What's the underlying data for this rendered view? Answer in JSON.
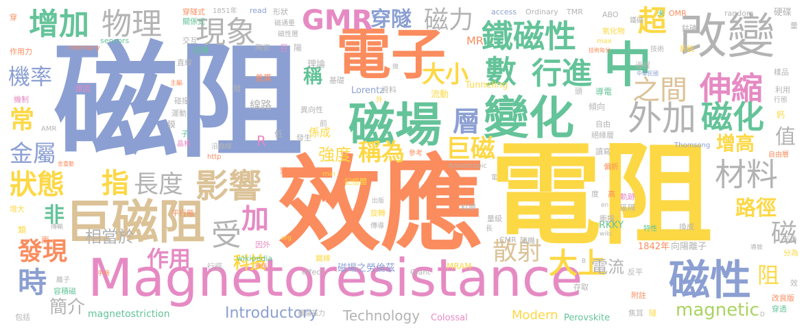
{
  "palette": {
    "blue": "#8b9fd2",
    "orange": "#fb8c5e",
    "yellow": "#fdd845",
    "pink": "#e68ac3",
    "green": "#64c399",
    "grey": "#b3b3b3",
    "tan": "#dbc297",
    "lime": "#a9d360"
  },
  "words": [
    {
      "text": "磁阻",
      "color": "blue"
    },
    {
      "text": "電阻",
      "color": "yellow"
    },
    {
      "text": "效應",
      "color": "orange"
    },
    {
      "text": "Magnetoresistance",
      "color": "pink"
    },
    {
      "text": "電子",
      "color": "orange"
    },
    {
      "text": "磁場",
      "color": "green"
    },
    {
      "text": "變化",
      "color": "green"
    },
    {
      "text": "改變",
      "color": "grey"
    },
    {
      "text": "中",
      "color": "green"
    },
    {
      "text": "巨磁阻",
      "color": "tan"
    },
    {
      "text": "鐵磁性",
      "color": "green"
    },
    {
      "text": "GMR",
      "color": "pink"
    },
    {
      "text": "穿隧",
      "color": "blue"
    },
    {
      "text": "物理",
      "color": "grey"
    },
    {
      "text": "增加",
      "color": "green"
    },
    {
      "text": "現象",
      "color": "grey"
    },
    {
      "text": "磁力",
      "color": "grey"
    },
    {
      "text": "超",
      "color": "yellow"
    },
    {
      "text": "機率",
      "color": "blue"
    },
    {
      "text": "大小",
      "color": "yellow"
    },
    {
      "text": "數",
      "color": "green"
    },
    {
      "text": "行進",
      "color": "green"
    },
    {
      "text": "伸縮",
      "color": "pink"
    },
    {
      "text": "之間",
      "color": "tan"
    },
    {
      "text": "外加",
      "color": "grey"
    },
    {
      "text": "磁化",
      "color": "green"
    },
    {
      "text": "層",
      "color": "blue"
    },
    {
      "text": "材料",
      "color": "grey"
    },
    {
      "text": "常",
      "color": "yellow"
    },
    {
      "text": "金屬",
      "color": "blue"
    },
    {
      "text": "狀態",
      "color": "yellow"
    },
    {
      "text": "指",
      "color": "yellow"
    },
    {
      "text": "長度",
      "color": "grey"
    },
    {
      "text": "影響",
      "color": "tan"
    },
    {
      "text": "強度",
      "color": "yellow"
    },
    {
      "text": "稱為",
      "color": "yellow"
    },
    {
      "text": "巨磁",
      "color": "yellow"
    },
    {
      "text": "增高",
      "color": "yellow"
    },
    {
      "text": "值",
      "color": "grey"
    },
    {
      "text": "非",
      "color": "green"
    },
    {
      "text": "受",
      "color": "grey"
    },
    {
      "text": "加",
      "color": "pink"
    },
    {
      "text": "路徑",
      "color": "yellow"
    },
    {
      "text": "磁",
      "color": "grey"
    },
    {
      "text": "發現",
      "color": "orange"
    },
    {
      "text": "相當於",
      "color": "grey"
    },
    {
      "text": "作用",
      "color": "pink"
    },
    {
      "text": "散射",
      "color": "tan"
    },
    {
      "text": "大上",
      "color": "yellow"
    },
    {
      "text": "磁性",
      "color": "blue"
    },
    {
      "text": "時",
      "color": "blue"
    },
    {
      "text": "科技",
      "color": "yellow"
    },
    {
      "text": "電流",
      "color": "grey"
    },
    {
      "text": "阻",
      "color": "yellow"
    },
    {
      "text": "簡介",
      "color": "grey"
    },
    {
      "text": "magnetic",
      "color": "lime"
    },
    {
      "text": "Introductory",
      "color": "blue"
    },
    {
      "text": "Technology",
      "color": "grey"
    },
    {
      "text": "Modern",
      "color": "yellow"
    },
    {
      "text": "magnetostriction",
      "color": "green"
    },
    {
      "text": "Colossal",
      "color": "pink"
    },
    {
      "text": "Perovskite",
      "color": "green"
    },
    {
      "text": "磁場之勞倫茲",
      "color": "blue"
    },
    {
      "text": "Lorentz",
      "color": "blue"
    },
    {
      "text": "Tunneling",
      "color": "yellow"
    },
    {
      "text": "MR",
      "color": "orange"
    },
    {
      "text": "稱",
      "color": "green"
    },
    {
      "text": "R",
      "color": "pink"
    },
    {
      "text": "線路",
      "color": "grey"
    },
    {
      "text": "係成",
      "color": "yellow"
    },
    {
      "text": "理論",
      "color": "grey"
    },
    {
      "text": "1842年",
      "color": "orange"
    },
    {
      "text": "向陽離子",
      "color": "grey"
    },
    {
      "text": "RKKY",
      "color": "green"
    },
    {
      "text": "Giant",
      "color": "grey"
    },
    {
      "text": "MRAM",
      "color": "yellow"
    },
    {
      "text": "effect",
      "color": "grey"
    },
    {
      "text": "wikipedia",
      "color": "green"
    },
    {
      "text": "CMR",
      "color": "grey"
    },
    {
      "text": "Thomsong",
      "color": "blue"
    },
    {
      "text": "Anisotropic",
      "color": "grey"
    },
    {
      "text": "access",
      "color": "blue"
    },
    {
      "text": "Ordinary",
      "color": "grey"
    },
    {
      "text": "TMR",
      "color": "grey"
    },
    {
      "text": "ABO",
      "color": "grey"
    },
    {
      "text": "OMR",
      "color": "orange"
    },
    {
      "text": "random",
      "color": "grey"
    },
    {
      "text": "硬碟",
      "color": "grey"
    },
    {
      "text": "memory",
      "color": "orange"
    },
    {
      "text": "sensors",
      "color": "green"
    },
    {
      "text": "1851年",
      "color": "grey"
    },
    {
      "text": "read",
      "color": "blue"
    },
    {
      "text": "形狀",
      "color": "grey"
    },
    {
      "text": "穿隧式",
      "color": "orange"
    },
    {
      "text": "關係式",
      "color": "green"
    },
    {
      "text": "磁通量",
      "color": "grey"
    },
    {
      "text": "磁性層",
      "color": "grey"
    },
    {
      "text": "交互",
      "color": "grey"
    },
    {
      "text": "結構",
      "color": "green"
    },
    {
      "text": "陶瓷",
      "color": "grey"
    },
    {
      "text": "巨",
      "color": "pink"
    },
    {
      "text": "陽",
      "color": "grey"
    },
    {
      "text": "作用力",
      "color": "orange"
    },
    {
      "text": "直線",
      "color": "grey"
    },
    {
      "text": "原因",
      "color": "pink"
    },
    {
      "text": "差異",
      "color": "orange"
    },
    {
      "text": "主編",
      "color": "orange"
    },
    {
      "text": "機制",
      "color": "pink"
    },
    {
      "text": "碰撞",
      "color": "grey"
    },
    {
      "text": "運動",
      "color": "grey"
    },
    {
      "text": "膜",
      "color": "grey"
    },
    {
      "text": "子",
      "color": "green"
    },
    {
      "text": "AMR",
      "color": "grey"
    },
    {
      "text": "晶格",
      "color": "pink"
    },
    {
      "text": "http",
      "color": "orange"
    },
    {
      "text": "沿曲線",
      "color": "grey"
    },
    {
      "text": "低",
      "color": "grey"
    },
    {
      "text": "發生",
      "color": "grey"
    },
    {
      "text": "異向性",
      "color": "grey"
    },
    {
      "text": "前",
      "color": "grey"
    },
    {
      "text": "基礎",
      "color": "grey"
    },
    {
      "text": "資料",
      "color": "grey"
    },
    {
      "text": "外",
      "color": "yellow"
    },
    {
      "text": "流動",
      "color": "yellow"
    },
    {
      "text": "傾向",
      "color": "grey"
    },
    {
      "text": "自由",
      "color": "grey"
    },
    {
      "text": "絕緣層",
      "color": "grey"
    },
    {
      "text": "讀寫",
      "color": "grey"
    },
    {
      "text": "自由層",
      "color": "orange"
    },
    {
      "text": "偏折",
      "color": "orange"
    },
    {
      "text": "軌跡",
      "color": "pink"
    },
    {
      "text": "區隔",
      "color": "grey"
    },
    {
      "text": "衝撞",
      "color": "grey"
    },
    {
      "text": "特性",
      "color": "green"
    },
    {
      "text": "換成",
      "color": "grey"
    },
    {
      "text": "導電",
      "color": "green"
    },
    {
      "text": "頭",
      "color": "grey"
    },
    {
      "text": "量",
      "color": "grey"
    },
    {
      "text": "鈷礦",
      "color": "grey"
    },
    {
      "text": "技術",
      "color": "grey"
    },
    {
      "text": "系統",
      "color": "yellow"
    },
    {
      "text": "過程",
      "color": "grey"
    },
    {
      "text": "中華民國",
      "color": "blue"
    },
    {
      "text": "樣品",
      "color": "grey"
    },
    {
      "text": "利用",
      "color": "grey"
    },
    {
      "text": "行態",
      "color": "grey"
    },
    {
      "text": "鈣",
      "color": "yellow"
    },
    {
      "text": "改良版",
      "color": "orange"
    },
    {
      "text": "穿透",
      "color": "green"
    },
    {
      "text": "夾角",
      "color": "grey"
    },
    {
      "text": "分為",
      "color": "yellow"
    },
    {
      "text": "效",
      "color": "grey"
    },
    {
      "text": "導致",
      "color": "grey"
    },
    {
      "text": "包括",
      "color": "grey"
    },
    {
      "text": "容積磁",
      "color": "green"
    },
    {
      "text": "離子",
      "color": "grey"
    },
    {
      "text": "兩",
      "color": "orange"
    },
    {
      "text": "類",
      "color": "yellow"
    },
    {
      "text": "增大",
      "color": "yellow"
    },
    {
      "text": "傳輸",
      "color": "grey"
    },
    {
      "text": "手冊",
      "color": "orange"
    },
    {
      "text": "關係",
      "color": "orange"
    },
    {
      "text": "行徑",
      "color": "grey"
    },
    {
      "text": "org",
      "color": "yellow"
    },
    {
      "text": "因外",
      "color": "pink"
    },
    {
      "text": "鐵棒",
      "color": "yellow"
    },
    {
      "text": "傳導",
      "color": "grey"
    },
    {
      "text": "旋轉",
      "color": "yellow"
    },
    {
      "text": "記憶體",
      "color": "yellow"
    },
    {
      "text": "變形",
      "color": "orange"
    },
    {
      "text": "min",
      "color": "yellow"
    },
    {
      "text": "參考",
      "color": "orange"
    },
    {
      "text": "出版",
      "color": "grey"
    },
    {
      "text": "科學",
      "color": "grey"
    },
    {
      "text": "量級",
      "color": "grey"
    },
    {
      "text": "長",
      "color": "grey"
    },
    {
      "text": "隨機",
      "color": "grey"
    },
    {
      "text": "反平",
      "color": "grey"
    },
    {
      "text": "存取",
      "color": "grey"
    },
    {
      "text": "附註",
      "color": "orange"
    },
    {
      "text": "焦耳",
      "color": "grey"
    },
    {
      "text": "隧",
      "color": "yellow"
    },
    {
      "text": "平行態",
      "color": "orange"
    },
    {
      "text": "度",
      "color": "grey"
    },
    {
      "text": "高",
      "color": "orange"
    },
    {
      "text": "氧化物",
      "color": "yellow"
    },
    {
      "text": "max",
      "color": "yellow"
    },
    {
      "text": "技術每分",
      "color": "orange"
    },
    {
      "text": "未",
      "color": "green"
    },
    {
      "text": "鐵磁",
      "color": "grey"
    },
    {
      "text": "wiki",
      "color": "grey"
    },
    {
      "text": "en",
      "color": "grey"
    },
    {
      "text": "羅倫茲力",
      "color": "grey"
    },
    {
      "text": "穿",
      "color": "orange"
    },
    {
      "text": "做",
      "color": "grey"
    },
    {
      "text": "間",
      "color": "grey"
    },
    {
      "text": "電",
      "color": "grey"
    },
    {
      "text": "金重動",
      "color": "orange"
    },
    {
      "text": "B",
      "color": "grey"
    },
    {
      "text": "D",
      "color": "grey"
    }
  ]
}
